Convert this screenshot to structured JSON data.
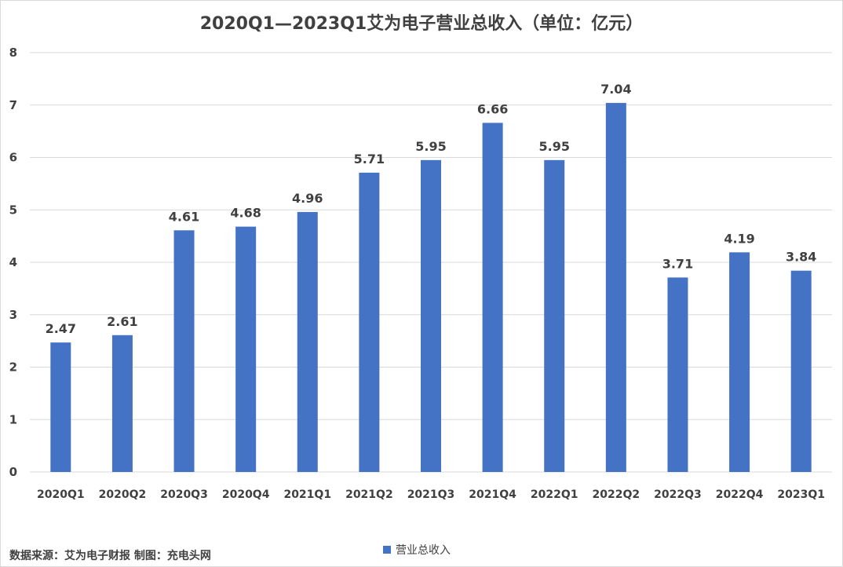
{
  "title": "2020Q1—2023Q1艾为电子营业总收入（单位：亿元）",
  "source": "数据来源：艾为电子财报 制图：充电头网",
  "colors": {
    "bar": "#4472c4",
    "grid": "#d9d9d9",
    "text": "#404040"
  },
  "chart_data": {
    "type": "bar",
    "title": "2020Q1—2023Q1艾为电子营业总收入（单位：亿元）",
    "categories": [
      "2020Q1",
      "2020Q2",
      "2020Q3",
      "2020Q4",
      "2021Q1",
      "2021Q2",
      "2021Q3",
      "2021Q4",
      "2022Q1",
      "2022Q2",
      "2022Q3",
      "2022Q4",
      "2023Q1"
    ],
    "series": [
      {
        "name": "营业总收入",
        "values": [
          2.47,
          2.61,
          4.61,
          4.68,
          4.96,
          5.71,
          5.95,
          6.66,
          5.95,
          7.04,
          3.71,
          4.19,
          3.84
        ]
      }
    ],
    "data_labels": [
      "2.47",
      "2.61",
      "4.61",
      "4.68",
      "4.96",
      "5.71",
      "5.95",
      "6.66",
      "5.95",
      "7.04",
      "3.71",
      "4.19",
      "3.84"
    ],
    "yticks": [
      "0",
      "1",
      "2",
      "3",
      "4",
      "5",
      "6",
      "7",
      "8"
    ],
    "ylim": [
      0,
      8
    ],
    "grid": true,
    "legend_position": "bottom"
  }
}
